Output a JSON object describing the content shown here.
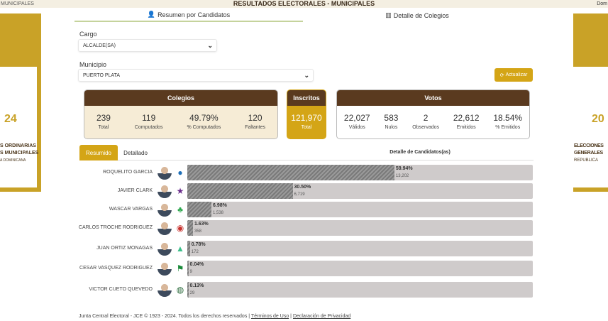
{
  "header": {
    "title": "RESULTADOS ELECTORALES - MUNICIPALES",
    "left_text": "MUNICIPALES",
    "right_text": "Dom"
  },
  "banners": {
    "left": {
      "line1": "S ORDINARIAS",
      "line2": "S MUNICIPALES",
      "line3": "A DOMINICANA",
      "year": "24"
    },
    "right": {
      "line1": "ELECCIONES",
      "line2": "GENERALES",
      "line3": "REPUBLICA",
      "year": "20"
    }
  },
  "tabs": [
    {
      "label": "Resumen por Candidatos",
      "icon": "person-icon"
    },
    {
      "label": "Detalle de Colegios",
      "icon": "building-icon"
    }
  ],
  "cargo": {
    "label": "Cargo",
    "value": "ALCALDE(SA)"
  },
  "municipio": {
    "label": "Municipio",
    "value": "PUERTO PLATA"
  },
  "actualizar": "Actualizar",
  "colegios": {
    "title": "Colegios",
    "stats": [
      {
        "v": "239",
        "k": "Total"
      },
      {
        "v": "119",
        "k": "Computados"
      },
      {
        "v": "49.79%",
        "k": "% Computados"
      },
      {
        "v": "120",
        "k": "Faltantes"
      }
    ]
  },
  "inscritos": {
    "title": "Inscritos",
    "v": "121,970",
    "k": "Total"
  },
  "votos": {
    "title": "Votos",
    "stats": [
      {
        "v": "22,027",
        "k": "Válidos"
      },
      {
        "v": "583",
        "k": "Nulos"
      },
      {
        "v": "2",
        "k": "Observados"
      },
      {
        "v": "22,612",
        "k": "Emitidos"
      },
      {
        "v": "18.54%",
        "k": "% Emitidos"
      }
    ]
  },
  "subtabs": [
    "Resumido",
    "Detallado"
  ],
  "detalle_title": "Detalle de Candidatos(as)",
  "candidates": [
    {
      "name": "ROQUELITO GARCIA",
      "pct": "59.94%",
      "pct_value": 59.94,
      "votes": "13,202",
      "logo_color": "#1e6fb8",
      "logo": "●"
    },
    {
      "name": "JAVIER CLARK",
      "pct": "30.50%",
      "pct_value": 30.5,
      "votes": "6,719",
      "logo_color": "#6a2c8c",
      "logo": "★"
    },
    {
      "name": "WASCAR VARGAS",
      "pct": "6.98%",
      "pct_value": 6.98,
      "votes": "1,538",
      "logo_color": "#2fa84f",
      "logo": "♣"
    },
    {
      "name": "CARLOS TROCHE RODRIGUEZ",
      "pct": "1.63%",
      "pct_value": 1.63,
      "votes": "358",
      "logo_color": "#c8322e",
      "logo": "◉"
    },
    {
      "name": "JUAN ORTIZ MONAGAS",
      "pct": "0.78%",
      "pct_value": 0.78,
      "votes": "172",
      "logo_color": "#3cbf8a",
      "logo": "▲"
    },
    {
      "name": "CESAR VASQUEZ RODRIGUEZ",
      "pct": "0.04%",
      "pct_value": 0.04,
      "votes": "9",
      "logo_color": "#1a8a3a",
      "logo": "⚑"
    },
    {
      "name": "VICTOR CUETO QUEVEDO",
      "pct": "0.13%",
      "pct_value": 0.13,
      "votes": "29",
      "logo_color": "#2a6a3a",
      "logo": "◍"
    }
  ],
  "footer": {
    "text": "Junta Central Electoral - JCE © 1923 - 2024. Todos los derechos reservados |",
    "terms": "Términos de Uso",
    "sep": "|",
    "privacy": "Declaración de Privacidad"
  }
}
